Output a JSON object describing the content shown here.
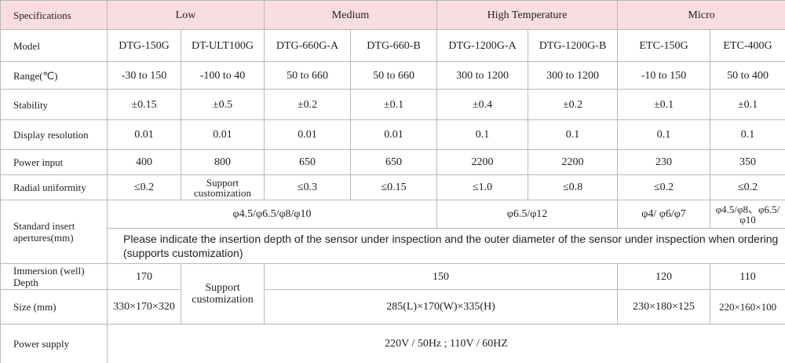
{
  "table": {
    "header": [
      "Specifications",
      "Low",
      "Medium",
      "High Temperature",
      "Micro"
    ],
    "rows": [
      {
        "label": "Model",
        "cells": [
          "DTG-150G",
          "DT-ULT100G",
          "DTG-660G-A",
          "DTG-660-B",
          "DTG-1200G-A",
          "DTG-1200G-B",
          "ETC-150G",
          "ETC-400G"
        ]
      },
      {
        "label": "Range(℃)",
        "cells": [
          "-30 to 150",
          "-100 to 40",
          "50 to 660",
          "50 to 660",
          "300 to 1200",
          "300 to 1200",
          "-10 to 150",
          "50 to 400"
        ]
      },
      {
        "label": "Stability",
        "cells": [
          "±0.15",
          "±0.5",
          "±0.2",
          "±0.1",
          "±0.4",
          "±0.2",
          "±0.1",
          "±0.1"
        ]
      },
      {
        "label": "Display resolution",
        "cells": [
          "0.01",
          "0.01",
          "0.01",
          "0.01",
          "0.1",
          "0.1",
          "0.1",
          "0.1"
        ]
      },
      {
        "label": "Power input",
        "cells": [
          "400",
          "800",
          "650",
          "650",
          "2200",
          "2200",
          "230",
          "350"
        ]
      },
      {
        "label": "Radial uniformity",
        "cells": [
          "≤0.2",
          "Support customization",
          "≤0.3",
          "≤0.15",
          "≤1.0",
          "≤0.8",
          "≤0.2",
          "≤0.2"
        ]
      },
      {
        "label": "Standard insert apertures(mm)",
        "cells": [
          "φ4.5/φ6.5/φ8/φ10",
          "φ6.5/φ12",
          "φ4/ φ6/φ7",
          "φ4.5/φ8、φ6.5/φ10"
        ],
        "note": "Please indicate the insertion depth of the sensor under inspection and the outer diameter of the sensor under inspection when ordering (supports customization)"
      },
      {
        "label": "Immersion (well) Depth",
        "cells": [
          "170",
          "Support customization",
          "150",
          "120",
          "110"
        ]
      },
      {
        "label": "Size (mm)",
        "cells": [
          "330×170×320",
          "285(L)×170(W)×335(H)",
          "230×180×125",
          "220×160×100"
        ]
      },
      {
        "label": "Power supply",
        "cells": [
          "220V / 50Hz ; 110V / 60HZ"
        ]
      }
    ]
  }
}
